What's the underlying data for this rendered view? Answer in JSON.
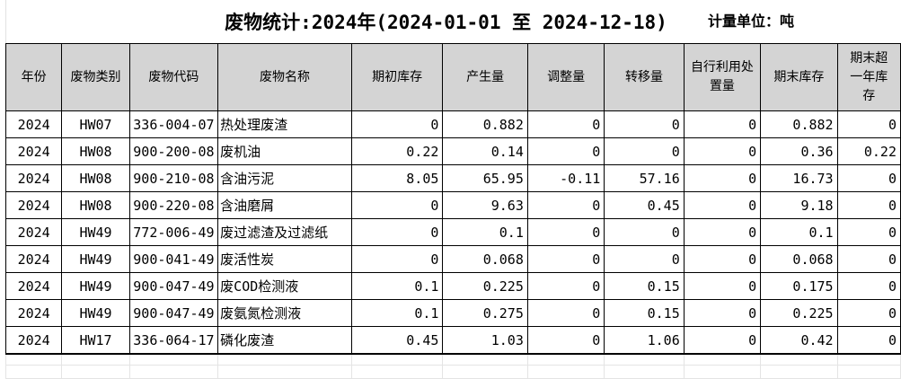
{
  "title": "废物统计:2024年(2024-01-01 至 2024-12-18)",
  "unit_label": "计量单位：吨",
  "colors": {
    "header_bg": "#d4d4d4",
    "table_border": "#000000",
    "faint_grid": "#e4e4e4",
    "text": "#000000",
    "background": "#ffffff"
  },
  "table": {
    "columns": [
      {
        "label": "年份"
      },
      {
        "label": "废物类别"
      },
      {
        "label": "废物代码"
      },
      {
        "label": "废物名称"
      },
      {
        "label": "期初库存"
      },
      {
        "label": "产生量"
      },
      {
        "label": "调整量"
      },
      {
        "label": "转移量"
      },
      {
        "label": "自行利用处置量"
      },
      {
        "label": "期末库存"
      },
      {
        "label": "期末超一年库存"
      }
    ],
    "rows": [
      [
        "2024",
        "HW07",
        "336-004-07",
        "热处理废渣",
        "0",
        "0.882",
        "0",
        "0",
        "0",
        "0.882",
        "0"
      ],
      [
        "2024",
        "HW08",
        "900-200-08",
        "废机油",
        "0.22",
        "0.14",
        "0",
        "0",
        "0",
        "0.36",
        "0.22"
      ],
      [
        "2024",
        "HW08",
        "900-210-08",
        "含油污泥",
        "8.05",
        "65.95",
        "-0.11",
        "57.16",
        "0",
        "16.73",
        "0"
      ],
      [
        "2024",
        "HW08",
        "900-220-08",
        "含油磨屑",
        "0",
        "9.63",
        "0",
        "0.45",
        "0",
        "9.18",
        "0"
      ],
      [
        "2024",
        "HW49",
        "772-006-49",
        "废过滤渣及过滤纸",
        "0",
        "0.1",
        "0",
        "0",
        "0",
        "0.1",
        "0"
      ],
      [
        "2024",
        "HW49",
        "900-041-49",
        "废活性炭",
        "0",
        "0.068",
        "0",
        "0",
        "0",
        "0.068",
        "0"
      ],
      [
        "2024",
        "HW49",
        "900-047-49",
        "废COD检测液",
        "0.1",
        "0.225",
        "0",
        "0.15",
        "0",
        "0.175",
        "0"
      ],
      [
        "2024",
        "HW49",
        "900-047-49",
        "废氨氮检测液",
        "0.1",
        "0.275",
        "0",
        "0.15",
        "0",
        "0.225",
        "0"
      ],
      [
        "2024",
        "HW17",
        "336-064-17",
        "磷化废渣",
        "0.45",
        "1.03",
        "0",
        "1.06",
        "0",
        "0.42",
        "0"
      ]
    ],
    "empty_trailing_rows": 2
  }
}
